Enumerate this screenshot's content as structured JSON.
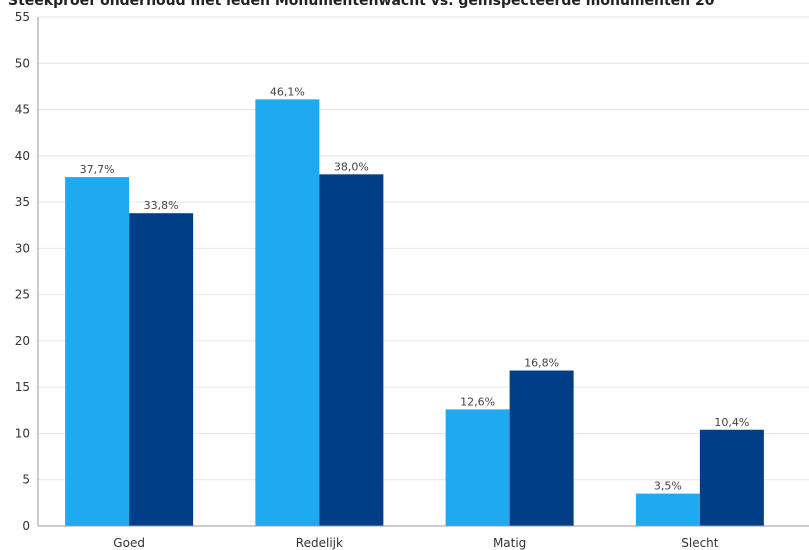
{
  "chart_data": {
    "type": "bar",
    "title": "Steekproef onderhoud met leden Monumentenwacht vs. geïnspecteerde monumenten 20",
    "categories": [
      "Goed",
      "Redelijk",
      "Matig",
      "Slecht"
    ],
    "series": [
      {
        "values": [
          37.7,
          46.1,
          12.6,
          3.5
        ],
        "labels": [
          "37,7%",
          "46,1%",
          "12,6%",
          "3,5%"
        ],
        "color": "#1fa9f0"
      },
      {
        "values": [
          33.8,
          38.0,
          16.8,
          10.4
        ],
        "labels": [
          "33,8%",
          "38,0%",
          "16,8%",
          "10,4%"
        ],
        "color": "#003f87"
      }
    ],
    "ylim": [
      0,
      55
    ],
    "yticks": [
      0,
      5,
      10,
      15,
      20,
      25,
      30,
      35,
      40,
      45,
      50,
      55
    ],
    "grid": true,
    "xlabel": "",
    "ylabel": ""
  }
}
